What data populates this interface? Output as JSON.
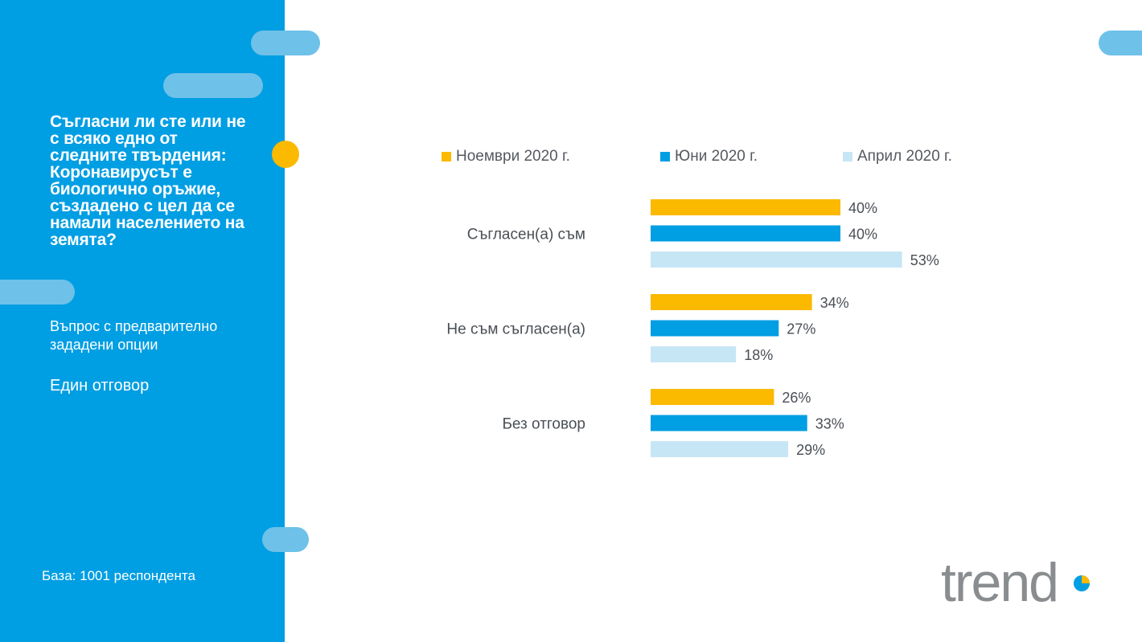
{
  "sidebar": {
    "question": "Съгласни ли сте или не с всяко едно от следните твърдения: Коронавирусът е биологично оръжие, създадено с цел да се намали населението на земята?",
    "question_type": "Въпрос с предварително зададени опции",
    "answer_type": "Един отговор",
    "base": "База: 1001 респондента"
  },
  "colors": {
    "sidebar": "#009ee3",
    "pill": "#6ec1e8",
    "accent": "#fbb900"
  },
  "logo": {
    "text": "trend"
  },
  "chart_data": {
    "type": "bar",
    "orientation": "horizontal",
    "categories": [
      "Съгласен(а) съм",
      "Не съм съгласен(а)",
      "Без отговор"
    ],
    "series": [
      {
        "name": "Ноември 2020 г.",
        "color": "#fbb900",
        "values": [
          40,
          34,
          26
        ],
        "labels": [
          "40%",
          "34%",
          "26%"
        ]
      },
      {
        "name": "Юни 2020 г.",
        "color": "#009ee3",
        "values": [
          40,
          27,
          33
        ],
        "labels": [
          "40%",
          "27%",
          "33%"
        ]
      },
      {
        "name": "Април 2020 г.",
        "color": "#c7e6f5",
        "values": [
          53,
          18,
          29
        ],
        "labels": [
          "53%",
          "18%",
          "29%"
        ]
      }
    ],
    "unit": "%",
    "legend_position": "top",
    "grid": false
  }
}
